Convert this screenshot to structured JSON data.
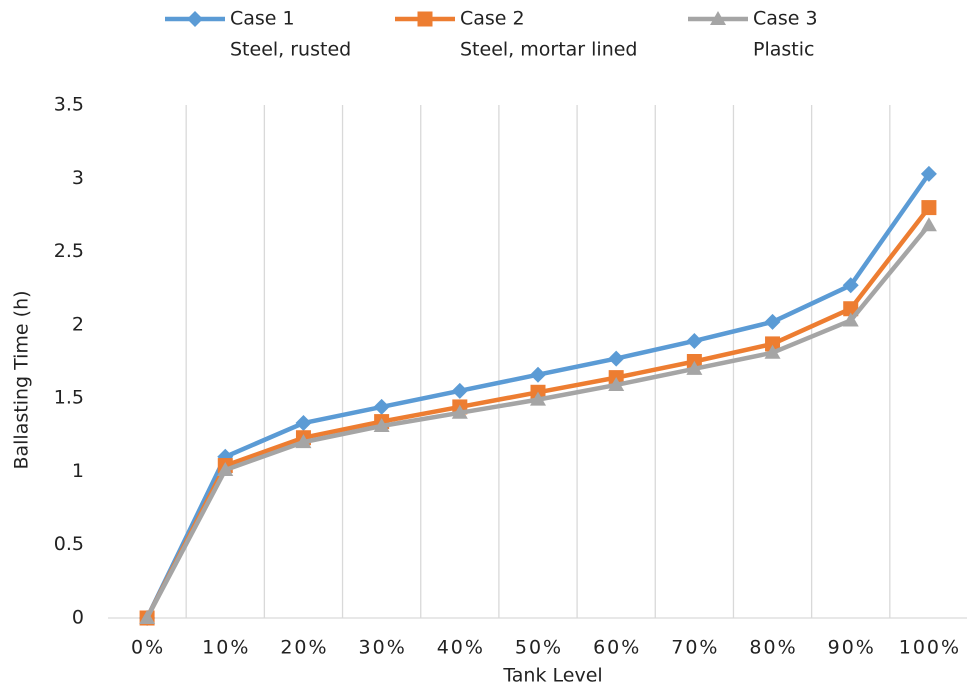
{
  "chart_data": {
    "type": "line",
    "x_label": "Tank Level",
    "y_label": "Ballasting Time (h)",
    "categories": [
      "0%",
      "10%",
      "20%",
      "30%",
      "40%",
      "50%",
      "60%",
      "70%",
      "80%",
      "90%",
      "100%"
    ],
    "series": [
      {
        "name": "Case 1",
        "material": "Steel, rusted",
        "color": "#5b9bd5",
        "marker": "diamond",
        "values": [
          0,
          1.1,
          1.33,
          1.44,
          1.55,
          1.66,
          1.77,
          1.89,
          2.02,
          2.27,
          3.03
        ]
      },
      {
        "name": "Case 2",
        "material": "Steel, mortar lined",
        "color": "#ed7d31",
        "marker": "square",
        "values": [
          0,
          1.04,
          1.23,
          1.34,
          1.44,
          1.54,
          1.64,
          1.75,
          1.87,
          2.11,
          2.8
        ]
      },
      {
        "name": "Case 3",
        "material": "Plastic",
        "color": "#a5a5a5",
        "marker": "triangle",
        "values": [
          0,
          1.01,
          1.2,
          1.31,
          1.4,
          1.49,
          1.59,
          1.7,
          1.81,
          2.03,
          2.68
        ]
      }
    ],
    "ylim": [
      0,
      3.5
    ],
    "yticks": [
      0,
      0.5,
      1,
      {
        "value": 1.5,
        "label": "1.5"
      },
      2,
      2.5,
      3,
      3.5
    ],
    "grid": "x",
    "legend": "top"
  }
}
